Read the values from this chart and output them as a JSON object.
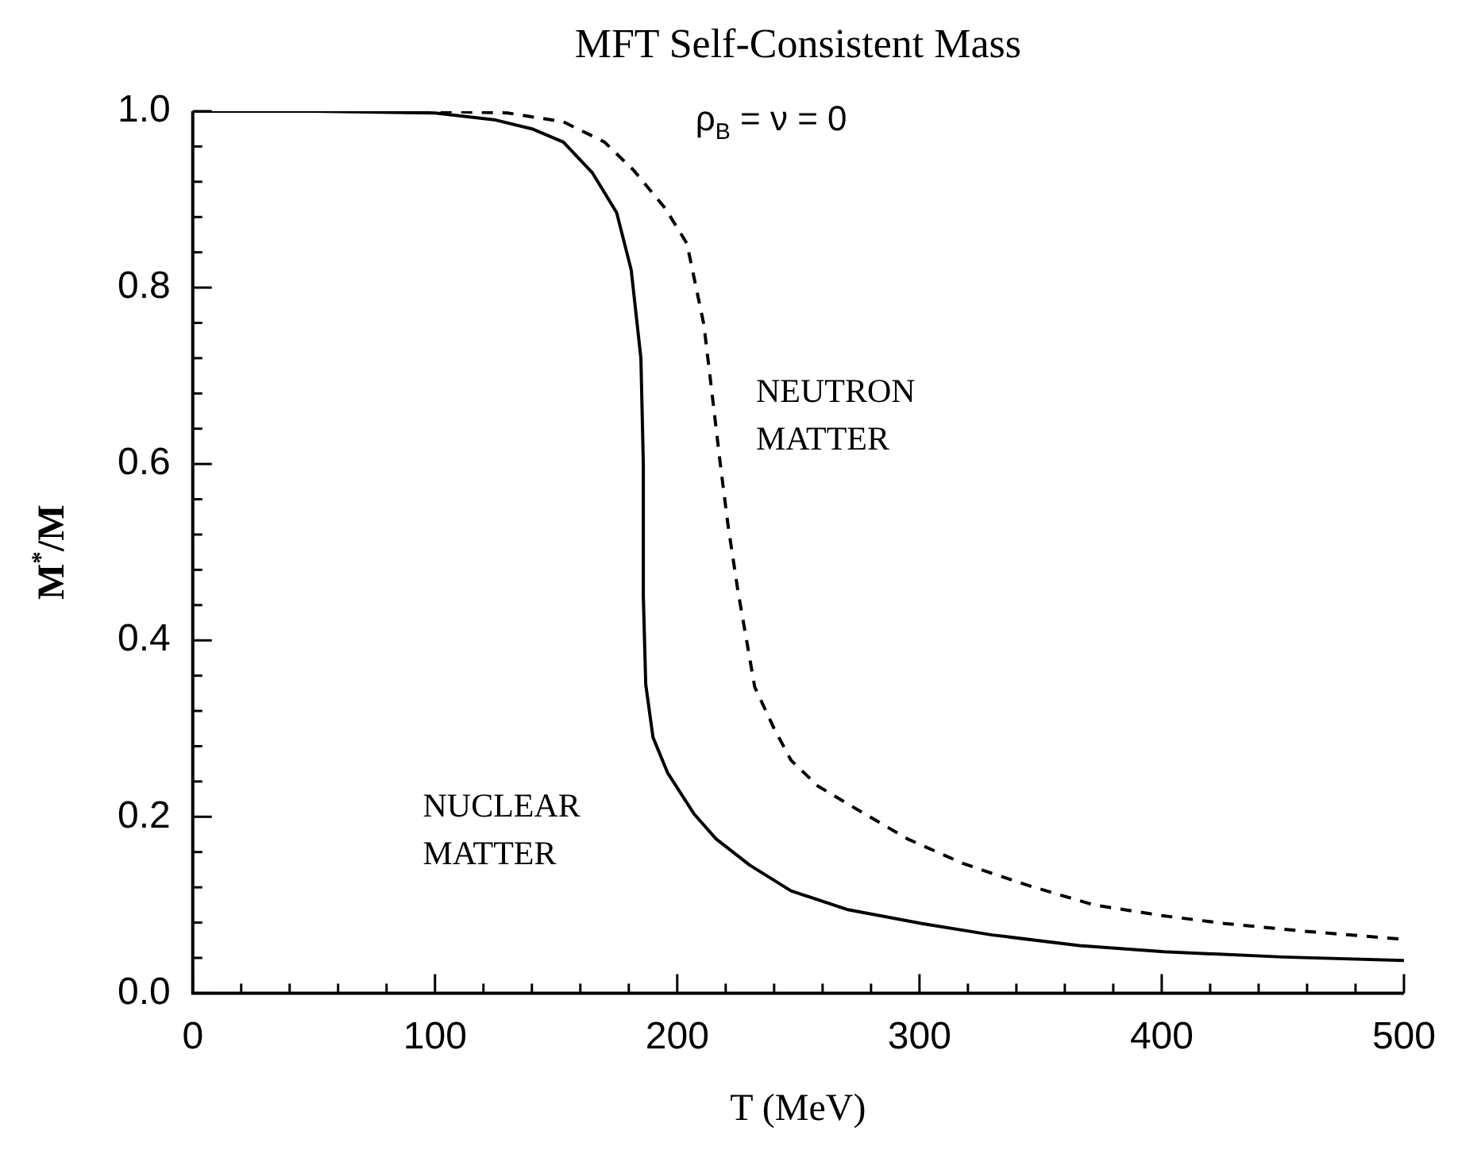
{
  "chart_data": {
    "type": "line",
    "title": "MFT Self-Consistent Mass",
    "xlabel": "T (MeV)",
    "ylabel": "M$^{*}$/M",
    "annotations": [
      "ρ$_{B}$ = ν = 0"
    ],
    "xlim": [
      0,
      500
    ],
    "ylim": [
      0,
      1
    ],
    "xticks": [
      0,
      {
        "value": 20,
        "label": null
      },
      {
        "value": 40,
        "label": null
      },
      {
        "value": 60,
        "label": null
      },
      {
        "value": 80,
        "label": null
      },
      100,
      {
        "value": 120,
        "label": null
      },
      {
        "value": 140,
        "label": null
      },
      {
        "value": 160,
        "label": null
      },
      {
        "value": 180,
        "label": null
      },
      200,
      {
        "value": 220,
        "label": null
      },
      {
        "value": 240,
        "label": null
      },
      {
        "value": 260,
        "label": null
      },
      {
        "value": 280,
        "label": null
      },
      300,
      {
        "value": 320,
        "label": null
      },
      {
        "value": 340,
        "label": null
      },
      {
        "value": 360,
        "label": null
      },
      {
        "value": 380,
        "label": null
      },
      400,
      {
        "value": 420,
        "label": null
      },
      {
        "value": 440,
        "label": null
      },
      {
        "value": 460,
        "label": null
      },
      {
        "value": 480,
        "label": null
      },
      500
    ],
    "yticks": [
      {
        "value": 0,
        "label": "0.0"
      },
      {
        "value": 0.04,
        "label": null
      },
      {
        "value": 0.08,
        "label": null
      },
      {
        "value": 0.12,
        "label": null
      },
      {
        "value": 0.16,
        "label": null
      },
      0.2,
      {
        "value": 0.24,
        "label": null
      },
      {
        "value": 0.28,
        "label": null
      },
      {
        "value": 0.32,
        "label": null
      },
      {
        "value": 0.36,
        "label": null
      },
      0.4,
      {
        "value": 0.44,
        "label": null
      },
      {
        "value": 0.48,
        "label": null
      },
      {
        "value": 0.52,
        "label": null
      },
      {
        "value": 0.56,
        "label": null
      },
      0.6,
      {
        "value": 0.64,
        "label": null
      },
      {
        "value": 0.68,
        "label": null
      },
      {
        "value": 0.72,
        "label": null
      },
      {
        "value": 0.76,
        "label": null
      },
      0.8,
      {
        "value": 0.84,
        "label": null
      },
      {
        "value": 0.88,
        "label": null
      },
      {
        "value": 0.92,
        "label": null
      },
      {
        "value": 0.96,
        "label": null
      },
      {
        "value": 1,
        "label": "1.0"
      }
    ],
    "grid": false,
    "legend": false,
    "marker": "none",
    "series": [
      {
        "name": "NUCLEAR MATTER",
        "color": "#000000",
        "line_style": "solid",
        "x": [
          0,
          50,
          100,
          125,
          140,
          153,
          165,
          175,
          181,
          185,
          186,
          186,
          187,
          190,
          196,
          207,
          216,
          230,
          247,
          270,
          301,
          330,
          366,
          401,
          450,
          500
        ],
        "values": [
          1.0,
          1.0,
          0.998,
          0.99,
          0.98,
          0.965,
          0.93,
          0.885,
          0.82,
          0.72,
          0.6,
          0.45,
          0.35,
          0.29,
          0.25,
          0.203,
          0.175,
          0.145,
          0.116,
          0.095,
          0.079,
          0.066,
          0.054,
          0.047,
          0.041,
          0.037
        ]
      },
      {
        "name": "NEUTRON MATTER",
        "color": "#000000",
        "line_style": "dashed",
        "x": [
          0,
          100,
          130,
          153,
          170,
          182,
          195,
          204,
          211,
          215,
          218,
          221,
          225,
          232,
          240,
          247,
          258,
          272,
          295,
          318,
          345,
          372,
          400,
          426,
          460,
          500
        ],
        "values": [
          1.0,
          1.0,
          0.998,
          0.988,
          0.965,
          0.933,
          0.89,
          0.85,
          0.758,
          0.665,
          0.595,
          0.53,
          0.457,
          0.347,
          0.3,
          0.264,
          0.235,
          0.212,
          0.175,
          0.147,
          0.122,
          0.1,
          0.088,
          0.079,
          0.07,
          0.061
        ]
      }
    ]
  }
}
